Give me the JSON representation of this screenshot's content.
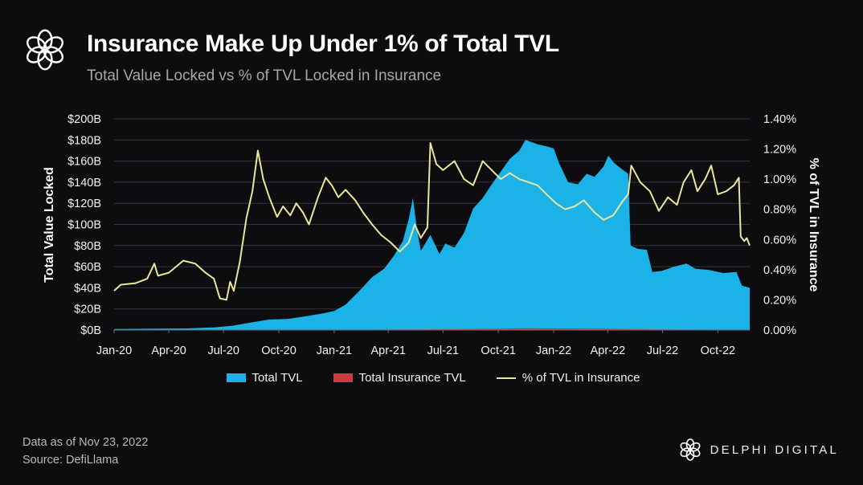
{
  "header": {
    "title": "Insurance Make Up Under 1% of Total TVL",
    "subtitle": "Total Value Locked vs % of TVL Locked in Insurance"
  },
  "footer": {
    "data_date": "Data as of Nov 23, 2022",
    "source": "Source: DefiLlama",
    "brand": "DELPHI DIGITAL"
  },
  "icons": {
    "logo": "delphi-flower-logo-icon"
  },
  "colors": {
    "background": "#0d0d10",
    "total_tvl": "#1bb2e8",
    "insurance_tvl": "#d0393d",
    "pct_line": "#eae59c",
    "grid": "#2f2f36"
  },
  "chart_data": {
    "type": "area",
    "title": "Insurance Make Up Under 1% of Total TVL",
    "subtitle": "Total Value Locked vs % of TVL Locked in Insurance",
    "xlabel": "",
    "ylabel": "Total Value Locked",
    "y2label": "% of TVL in Insurance",
    "x_tick_labels": [
      "Jan-20",
      "Apr-20",
      "Jul-20",
      "Oct-20",
      "Jan-21",
      "Apr-21",
      "Jul-21",
      "Oct-21",
      "Jan-22",
      "Apr-22",
      "Jul-22",
      "Oct-22"
    ],
    "y_tick_labels": [
      "$0B",
      "$20B",
      "$40B",
      "$60B",
      "$80B",
      "$100B",
      "$120B",
      "$140B",
      "$160B",
      "$180B",
      "$200B"
    ],
    "y2_tick_labels": [
      "0.00%",
      "0.20%",
      "0.40%",
      "0.60%",
      "0.80%",
      "1.00%",
      "1.20%",
      "1.40%"
    ],
    "ylim": [
      0,
      200
    ],
    "y2lim": [
      0,
      1.4
    ],
    "x_range": [
      "2020-01-01",
      "2022-11-23"
    ],
    "grid": true,
    "legend_position": "bottom",
    "series": [
      {
        "name": "Total TVL",
        "axis": "left",
        "style": "area",
        "color": "#1bb2e8",
        "unit": "$B",
        "points": [
          [
            "2020-01-01",
            1
          ],
          [
            "2020-03-01",
            1.2
          ],
          [
            "2020-05-01",
            1.5
          ],
          [
            "2020-06-15",
            2.5
          ],
          [
            "2020-07-15",
            4
          ],
          [
            "2020-08-15",
            7
          ],
          [
            "2020-09-15",
            10
          ],
          [
            "2020-10-15",
            10.5
          ],
          [
            "2020-11-15",
            13
          ],
          [
            "2020-12-15",
            16
          ],
          [
            "2021-01-01",
            18
          ],
          [
            "2021-01-20",
            24
          ],
          [
            "2021-02-10",
            36
          ],
          [
            "2021-02-20",
            42
          ],
          [
            "2021-03-05",
            50
          ],
          [
            "2021-03-25",
            58
          ],
          [
            "2021-04-10",
            70
          ],
          [
            "2021-04-25",
            84
          ],
          [
            "2021-05-05",
            105
          ],
          [
            "2021-05-12",
            125
          ],
          [
            "2021-05-18",
            98
          ],
          [
            "2021-05-25",
            75
          ],
          [
            "2021-06-10",
            90
          ],
          [
            "2021-06-25",
            72
          ],
          [
            "2021-07-05",
            82
          ],
          [
            "2021-07-20",
            78
          ],
          [
            "2021-08-05",
            92
          ],
          [
            "2021-08-20",
            115
          ],
          [
            "2021-09-05",
            125
          ],
          [
            "2021-09-20",
            138
          ],
          [
            "2021-10-05",
            150
          ],
          [
            "2021-10-20",
            162
          ],
          [
            "2021-11-05",
            170
          ],
          [
            "2021-11-15",
            180
          ],
          [
            "2021-11-25",
            178
          ],
          [
            "2021-12-05",
            176
          ],
          [
            "2021-12-20",
            174
          ],
          [
            "2022-01-01",
            172
          ],
          [
            "2022-01-10",
            158
          ],
          [
            "2022-01-25",
            140
          ],
          [
            "2022-02-10",
            138
          ],
          [
            "2022-02-25",
            148
          ],
          [
            "2022-03-10",
            145
          ],
          [
            "2022-03-25",
            155
          ],
          [
            "2022-04-02",
            165
          ],
          [
            "2022-04-12",
            158
          ],
          [
            "2022-04-25",
            152
          ],
          [
            "2022-05-05",
            148
          ],
          [
            "2022-05-09",
            80
          ],
          [
            "2022-05-20",
            77
          ],
          [
            "2022-06-05",
            76
          ],
          [
            "2022-06-14",
            55
          ],
          [
            "2022-06-30",
            56
          ],
          [
            "2022-07-20",
            60
          ],
          [
            "2022-08-10",
            63
          ],
          [
            "2022-08-25",
            58
          ],
          [
            "2022-09-15",
            57
          ],
          [
            "2022-10-10",
            54
          ],
          [
            "2022-11-01",
            55
          ],
          [
            "2022-11-10",
            42
          ],
          [
            "2022-11-23",
            40
          ]
        ]
      },
      {
        "name": "Total Insurance TVL",
        "axis": "left",
        "style": "area",
        "color": "#d0393d",
        "unit": "$B",
        "points": [
          [
            "2020-01-01",
            0.05
          ],
          [
            "2020-07-01",
            0.1
          ],
          [
            "2021-01-01",
            0.2
          ],
          [
            "2021-06-01",
            0.6
          ],
          [
            "2021-10-01",
            1.2
          ],
          [
            "2021-11-15",
            1.7
          ],
          [
            "2022-01-01",
            1.5
          ],
          [
            "2022-04-01",
            1.2
          ],
          [
            "2022-06-15",
            0.5
          ],
          [
            "2022-11-23",
            0.25
          ]
        ]
      },
      {
        "name": "% of TVL in Insurance",
        "axis": "right",
        "style": "line",
        "color": "#eae59c",
        "unit": "%",
        "points": [
          [
            "2020-01-01",
            0.26
          ],
          [
            "2020-01-12",
            0.3
          ],
          [
            "2020-02-05",
            0.31
          ],
          [
            "2020-02-25",
            0.34
          ],
          [
            "2020-03-08",
            0.44
          ],
          [
            "2020-03-14",
            0.36
          ],
          [
            "2020-04-01",
            0.38
          ],
          [
            "2020-04-25",
            0.46
          ],
          [
            "2020-05-15",
            0.44
          ],
          [
            "2020-06-01",
            0.38
          ],
          [
            "2020-06-15",
            0.34
          ],
          [
            "2020-06-25",
            0.21
          ],
          [
            "2020-07-06",
            0.2
          ],
          [
            "2020-07-12",
            0.32
          ],
          [
            "2020-07-18",
            0.26
          ],
          [
            "2020-07-28",
            0.45
          ],
          [
            "2020-08-08",
            0.74
          ],
          [
            "2020-08-18",
            0.92
          ],
          [
            "2020-08-27",
            1.19
          ],
          [
            "2020-09-05",
            1.0
          ],
          [
            "2020-09-15",
            0.88
          ],
          [
            "2020-09-28",
            0.75
          ],
          [
            "2020-10-08",
            0.82
          ],
          [
            "2020-10-20",
            0.76
          ],
          [
            "2020-10-30",
            0.84
          ],
          [
            "2020-11-10",
            0.78
          ],
          [
            "2020-11-20",
            0.7
          ],
          [
            "2020-12-05",
            0.88
          ],
          [
            "2020-12-18",
            1.01
          ],
          [
            "2020-12-28",
            0.96
          ],
          [
            "2021-01-08",
            0.88
          ],
          [
            "2021-01-20",
            0.93
          ],
          [
            "2021-02-05",
            0.86
          ],
          [
            "2021-02-18",
            0.78
          ],
          [
            "2021-03-05",
            0.7
          ],
          [
            "2021-03-20",
            0.63
          ],
          [
            "2021-04-05",
            0.58
          ],
          [
            "2021-04-20",
            0.52
          ],
          [
            "2021-05-05",
            0.58
          ],
          [
            "2021-05-15",
            0.7
          ],
          [
            "2021-05-25",
            0.61
          ],
          [
            "2021-06-05",
            0.68
          ],
          [
            "2021-06-10",
            1.24
          ],
          [
            "2021-06-20",
            1.1
          ],
          [
            "2021-07-01",
            1.06
          ],
          [
            "2021-07-20",
            1.12
          ],
          [
            "2021-08-05",
            1.0
          ],
          [
            "2021-08-20",
            0.96
          ],
          [
            "2021-09-05",
            1.12
          ],
          [
            "2021-09-20",
            1.06
          ],
          [
            "2021-10-05",
            1.0
          ],
          [
            "2021-10-20",
            1.04
          ],
          [
            "2021-11-05",
            1.0
          ],
          [
            "2021-11-20",
            0.98
          ],
          [
            "2021-12-05",
            0.96
          ],
          [
            "2021-12-20",
            0.9
          ],
          [
            "2022-01-05",
            0.84
          ],
          [
            "2022-01-20",
            0.8
          ],
          [
            "2022-02-05",
            0.82
          ],
          [
            "2022-02-20",
            0.86
          ],
          [
            "2022-03-10",
            0.78
          ],
          [
            "2022-03-25",
            0.73
          ],
          [
            "2022-04-10",
            0.76
          ],
          [
            "2022-04-25",
            0.85
          ],
          [
            "2022-05-05",
            0.9
          ],
          [
            "2022-05-10",
            1.09
          ],
          [
            "2022-05-25",
            0.98
          ],
          [
            "2022-06-10",
            0.92
          ],
          [
            "2022-06-25",
            0.79
          ],
          [
            "2022-07-10",
            0.88
          ],
          [
            "2022-07-25",
            0.83
          ],
          [
            "2022-08-05",
            0.98
          ],
          [
            "2022-08-18",
            1.06
          ],
          [
            "2022-08-28",
            0.92
          ],
          [
            "2022-09-10",
            1.0
          ],
          [
            "2022-09-20",
            1.09
          ],
          [
            "2022-10-01",
            0.9
          ],
          [
            "2022-10-15",
            0.92
          ],
          [
            "2022-10-28",
            0.96
          ],
          [
            "2022-11-05",
            1.01
          ],
          [
            "2022-11-08",
            0.62
          ],
          [
            "2022-11-14",
            0.59
          ],
          [
            "2022-11-18",
            0.61
          ],
          [
            "2022-11-23",
            0.56
          ]
        ]
      }
    ]
  }
}
